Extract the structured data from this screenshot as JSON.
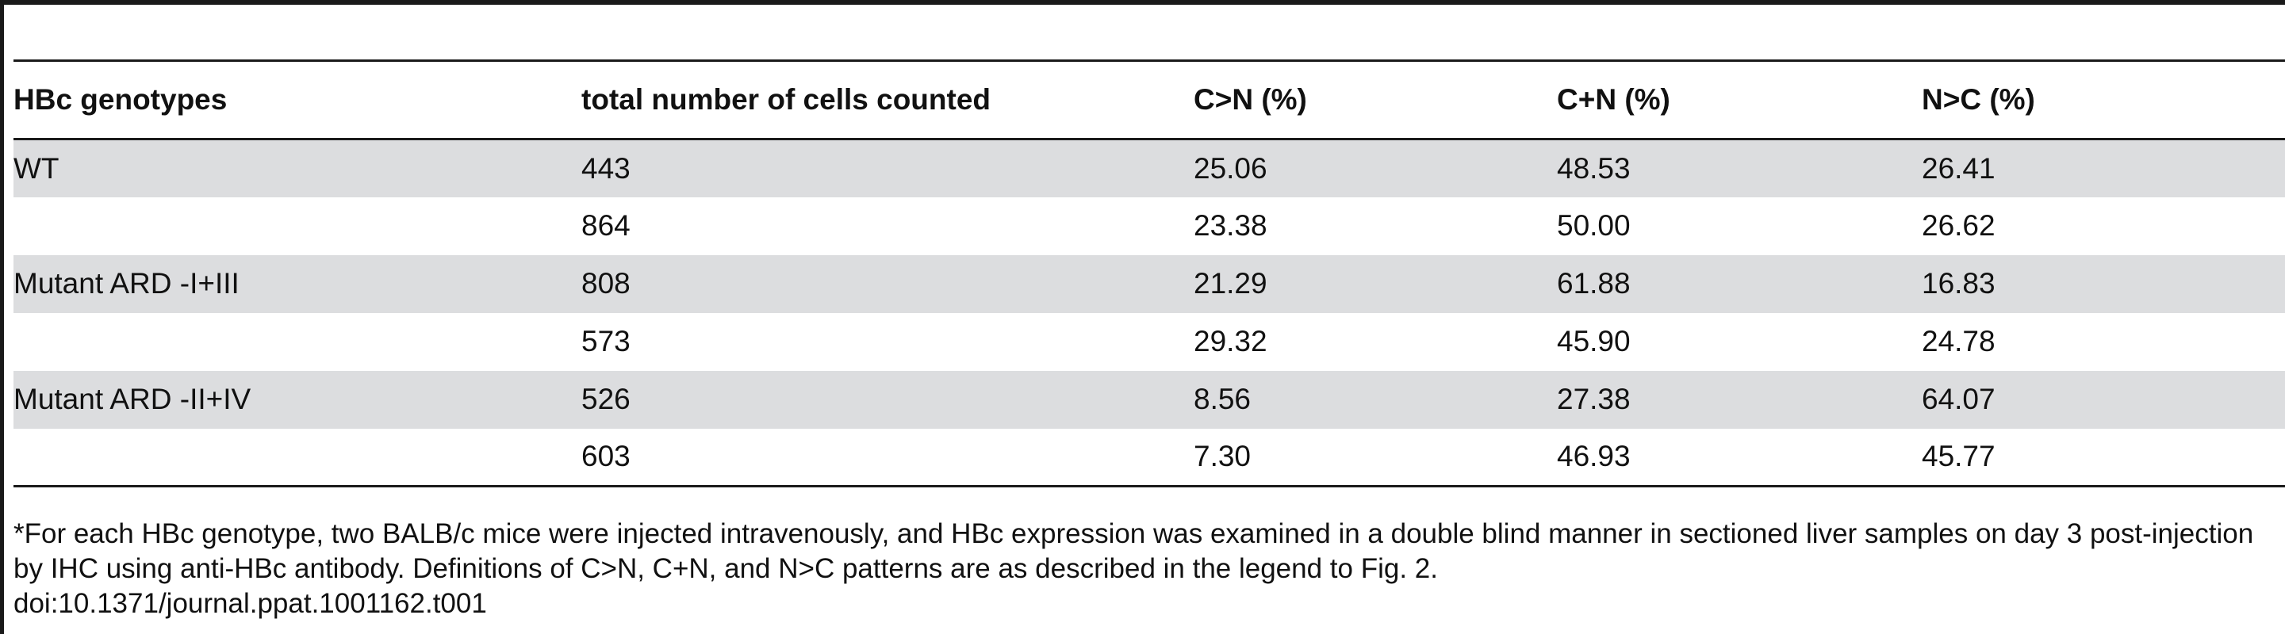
{
  "table": {
    "headers": [
      "HBc genotypes",
      "total number of cells counted",
      "C>N (%)",
      "C+N (%)",
      "N>C (%)"
    ],
    "rows": [
      {
        "genotype": "WT",
        "total": "443",
        "cn": "25.06",
        "cpn": "48.53",
        "nc": "26.41"
      },
      {
        "genotype": "",
        "total": "864",
        "cn": "23.38",
        "cpn": "50.00",
        "nc": "26.62"
      },
      {
        "genotype": "Mutant ARD -I+III",
        "total": "808",
        "cn": "21.29",
        "cpn": "61.88",
        "nc": "16.83"
      },
      {
        "genotype": "",
        "total": "573",
        "cn": "29.32",
        "cpn": "45.90",
        "nc": "24.78"
      },
      {
        "genotype": "Mutant ARD -II+IV",
        "total": "526",
        "cn": "8.56",
        "cpn": "27.38",
        "nc": "64.07"
      },
      {
        "genotype": "",
        "total": "603",
        "cn": "7.30",
        "cpn": "46.93",
        "nc": "45.77"
      }
    ]
  },
  "footnote": {
    "text": "*For each HBc genotype, two BALB/c mice were injected intravenously, and HBc expression was examined in a double blind manner in sectioned liver samples on day 3 post-injection by IHC using anti-HBc antibody. Definitions of C>N, C+N, and N>C patterns are as described in the legend to Fig. 2.",
    "doi": "doi:10.1371/journal.ppat.1001162.t001"
  }
}
